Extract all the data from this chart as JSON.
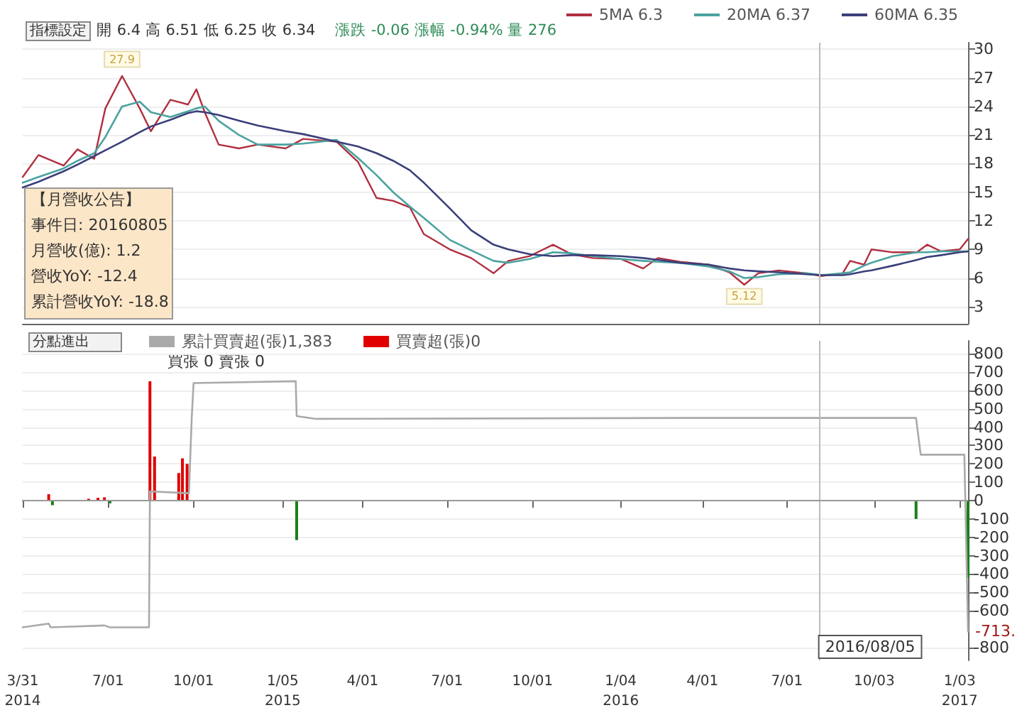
{
  "chart_data": [
    {
      "type": "line",
      "legend": "top right",
      "grid": "y",
      "marker": "none",
      "line_style": "solid",
      "tick_labels": "y",
      "x": [
        "2014-03-31",
        "2014-04-17",
        "2014-05-14",
        "2014-05-29",
        "2014-06-16",
        "2014-06-28",
        "2014-07-16",
        "2014-08-04",
        "2014-08-16",
        "2014-09-06",
        "2014-09-25",
        "2014-10-04",
        "2014-10-13",
        "2014-10-28",
        "2014-11-19",
        "2014-12-09",
        "2015-01-08",
        "2015-01-27",
        "2015-03-04",
        "2015-03-27",
        "2015-04-16",
        "2015-05-04",
        "2015-05-22",
        "2015-06-06",
        "2015-07-04",
        "2015-07-27",
        "2015-08-20",
        "2015-09-05",
        "2015-09-28",
        "2015-10-23",
        "2015-11-12",
        "2015-12-05",
        "2016-01-04",
        "2016-01-28",
        "2016-02-13",
        "2016-03-08",
        "2016-04-08",
        "2016-04-30",
        "2016-05-16",
        "2016-05-31",
        "2016-06-22",
        "2016-07-22",
        "2016-08-07",
        "2016-08-30",
        "2016-09-07",
        "2016-09-22",
        "2016-09-30",
        "2016-10-23",
        "2016-11-18",
        "2016-11-29",
        "2016-12-14",
        "2017-01-03",
        "2017-01-12"
      ],
      "xlim": [
        "2014-03-31",
        "2017-01-12"
      ],
      "ylim": [
        1.2,
        30.7
      ],
      "yticks": [
        3,
        6,
        9,
        12,
        15,
        18,
        21,
        24,
        27,
        30
      ],
      "series": [
        {
          "name": "5MA 6.3",
          "color": "#b03040",
          "values": [
            16.6,
            18.9,
            17.8,
            19.5,
            18.5,
            23.8,
            27.2,
            23.8,
            21.4,
            24.7,
            24.2,
            25.8,
            23.4,
            20.0,
            19.6,
            20.0,
            19.6,
            20.6,
            20.3,
            18.2,
            14.4,
            14.1,
            13.4,
            10.6,
            9.0,
            8.1,
            6.5,
            7.8,
            8.3,
            9.5,
            8.5,
            8.1,
            8.0,
            7.0,
            8.1,
            7.7,
            7.4,
            6.6,
            5.3,
            6.5,
            6.8,
            6.5,
            6.2,
            6.5,
            7.8,
            7.4,
            9.0,
            8.7,
            8.7,
            9.5,
            8.8,
            9.0,
            10.1
          ]
        },
        {
          "name": "20MA 6.37",
          "color": "#4aa3a0",
          "values": [
            16.0,
            16.6,
            17.5,
            18.3,
            19.1,
            20.8,
            24.0,
            24.5,
            23.4,
            22.9,
            23.5,
            23.8,
            24.0,
            22.5,
            21.0,
            20.0,
            20.0,
            20.1,
            20.5,
            18.6,
            16.8,
            15.0,
            13.5,
            12.3,
            10.0,
            8.9,
            7.8,
            7.6,
            8.0,
            8.7,
            8.6,
            8.3,
            8.0,
            7.8,
            7.7,
            7.6,
            7.2,
            6.7,
            6.0,
            6.1,
            6.4,
            6.5,
            6.3,
            6.5,
            6.6,
            7.3,
            7.6,
            8.3,
            8.7,
            8.7,
            8.8,
            8.8,
            8.8
          ]
        },
        {
          "name": "60MA 6.35",
          "color": "#3b3f7a",
          "values": [
            15.5,
            16.1,
            17.2,
            17.9,
            18.8,
            19.4,
            20.3,
            21.3,
            21.9,
            22.6,
            23.3,
            23.5,
            23.4,
            23.1,
            22.5,
            22.0,
            21.4,
            21.1,
            20.3,
            19.8,
            19.1,
            18.3,
            17.3,
            16.0,
            13.3,
            11.0,
            9.5,
            9.0,
            8.5,
            8.3,
            8.4,
            8.4,
            8.3,
            8.1,
            7.9,
            7.6,
            7.4,
            7.0,
            6.8,
            6.7,
            6.6,
            6.4,
            6.3,
            6.3,
            6.4,
            6.7,
            6.8,
            7.3,
            7.9,
            8.2,
            8.4,
            8.7,
            8.8
          ]
        }
      ],
      "ref_lines": [
        {
          "axis": "x",
          "value": "2016-08-05",
          "color": "#bbbbbb"
        }
      ],
      "annotations": [
        "開 6.4 高 6.51 低 6.25 收 6.34",
        "漲跌 -0.06 漲幅 -0.94% 量 276",
        "指標設定",
        "【月營收公告】",
        "事件日: 20160805",
        "月營收(億): 1.2",
        "營收YoY: -12.4",
        "累計營收YoY: -18.8",
        {
          "text": "27.9",
          "x": "2014-07-16",
          "y": 27.9
        },
        {
          "text": "5.12",
          "x": "2016-05-16",
          "y": 5.12
        }
      ]
    },
    {
      "type": "bar",
      "legend": "top left",
      "grid": "y",
      "marker": "none",
      "line_style": "solid",
      "xlim": [
        "2014-03-31",
        "2017-01-12"
      ],
      "xticks": [
        {
          "value": "2014-03-31",
          "label": "3/31\n2014"
        },
        {
          "value": "2014-07-01",
          "label": "7/01"
        },
        {
          "value": "2014-10-01",
          "label": "10/01"
        },
        {
          "value": "2015-01-05",
          "label": "1/05\n2015"
        },
        {
          "value": "2015-04-01",
          "label": "4/01"
        },
        {
          "value": "2015-07-01",
          "label": "7/01"
        },
        {
          "value": "2015-10-01",
          "label": "10/01"
        },
        {
          "value": "2016-01-04",
          "label": "1/04\n2016"
        },
        {
          "value": "2016-04-01",
          "label": "4/01"
        },
        {
          "value": "2016-07-01",
          "label": "7/01"
        },
        {
          "value": "2016-10-03",
          "label": "10/03"
        },
        {
          "value": "2017-01-03",
          "label": "1/03\n2017"
        }
      ],
      "ylim": [
        -870,
        870
      ],
      "yticks": [
        -800,
        -600,
        -500,
        -400,
        -300,
        -200,
        -100,
        0,
        100,
        200,
        300,
        400,
        500,
        600,
        700,
        800
      ],
      "series": [
        {
          "name": "累計買賣超(張)1,383",
          "type": "line",
          "color": "#aaaaaa",
          "x": [
            "2014-03-31",
            "2014-04-28",
            "2014-04-30",
            "2014-06-27",
            "2014-07-03",
            "2014-08-14",
            "2014-08-15",
            "2014-09-26",
            "2014-09-29",
            "2014-10-01",
            "2015-01-19",
            "2015-01-20",
            "2015-02-10",
            "2016-03-15",
            "2016-11-17",
            "2016-11-22",
            "2017-01-08",
            "2017-01-12"
          ],
          "values": [
            -690,
            -670,
            -690,
            -680,
            -690,
            -690,
            50,
            40,
            450,
            640,
            650,
            460,
            445,
            450,
            450,
            250,
            250,
            -713
          ]
        },
        {
          "name": "買賣超(張)0",
          "color": "#e00000",
          "x": [
            "2014-04-28",
            "2014-05-02",
            "2014-06-10",
            "2014-06-20",
            "2014-06-27",
            "2014-07-03",
            "2014-08-15",
            "2014-08-20",
            "2014-09-15",
            "2014-09-19",
            "2014-09-24",
            "2015-01-20",
            "2016-11-17",
            "2017-01-12"
          ],
          "values": [
            35,
            -25,
            10,
            15,
            18,
            -15,
            650,
            240,
            150,
            230,
            200,
            -215,
            -100,
            -420
          ],
          "colors": [
            "#e00000",
            "#1a7f1a",
            "#e00000",
            "#e00000",
            "#e00000",
            "#1a7f1a",
            "#e00000",
            "#e00000",
            "#e00000",
            "#e00000",
            "#e00000",
            "#1a7f1a",
            "#1a7f1a",
            "#1a7f1a"
          ]
        }
      ],
      "ref_lines": [
        {
          "axis": "x",
          "value": "2016-08-05",
          "label": "2016/08/05",
          "color": "#bbbbbb"
        },
        {
          "axis": "y",
          "value": 0,
          "color": "#999999"
        }
      ],
      "annotations": [
        "分點進出",
        "買張 0 賣張 0",
        {
          "text": "-713.",
          "x": "2017-01-12",
          "y": -713
        }
      ]
    }
  ]
}
